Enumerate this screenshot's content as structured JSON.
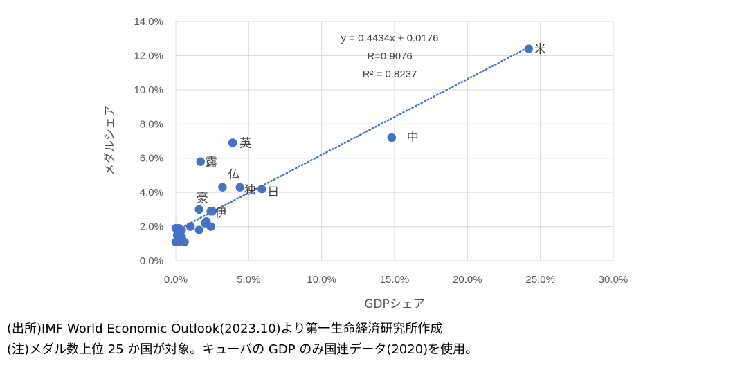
{
  "chart_data": {
    "type": "scatter",
    "xlabel": "GDPシェア",
    "ylabel": "メダルシェア",
    "xlim": [
      0,
      0.3
    ],
    "ylim": [
      0,
      0.14
    ],
    "x_ticks": [
      "0.0%",
      "5.0%",
      "10.0%",
      "15.0%",
      "20.0%",
      "25.0%",
      "30.0%"
    ],
    "y_ticks": [
      "0.0%",
      "2.0%",
      "4.0%",
      "6.0%",
      "8.0%",
      "10.0%",
      "12.0%",
      "14.0%"
    ],
    "grid": true,
    "point_color": "#4472C4",
    "trendline": {
      "slope": 0.4434,
      "intercept": 0.0176,
      "style": "dotted",
      "color": "#4472C4",
      "equation": "y = 0.4434x + 0.0176",
      "r": "R=0.9076",
      "r2": "R² = 0.8237"
    },
    "points": [
      {
        "x": 0.242,
        "y": 0.124,
        "label": "米"
      },
      {
        "x": 0.148,
        "y": 0.072,
        "label": "中"
      },
      {
        "x": 0.039,
        "y": 0.069,
        "label": "英"
      },
      {
        "x": 0.017,
        "y": 0.058,
        "label": "露"
      },
      {
        "x": 0.032,
        "y": 0.043,
        "label": "仏"
      },
      {
        "x": 0.044,
        "y": 0.043,
        "label": "独"
      },
      {
        "x": 0.059,
        "y": 0.042,
        "label": "日"
      },
      {
        "x": 0.016,
        "y": 0.03,
        "label": "豪"
      },
      {
        "x": 0.024,
        "y": 0.029,
        "label": "伊"
      },
      {
        "x": 0.025,
        "y": 0.029,
        "label": ""
      },
      {
        "x": 0.02,
        "y": 0.022,
        "label": ""
      },
      {
        "x": 0.021,
        "y": 0.023,
        "label": ""
      },
      {
        "x": 0.024,
        "y": 0.02,
        "label": ""
      },
      {
        "x": 0.01,
        "y": 0.02,
        "label": ""
      },
      {
        "x": 0.016,
        "y": 0.018,
        "label": ""
      },
      {
        "x": 0.0,
        "y": 0.019,
        "label": ""
      },
      {
        "x": 0.002,
        "y": 0.019,
        "label": ""
      },
      {
        "x": 0.004,
        "y": 0.018,
        "label": ""
      },
      {
        "x": 0.003,
        "y": 0.016,
        "label": ""
      },
      {
        "x": 0.001,
        "y": 0.015,
        "label": ""
      },
      {
        "x": 0.004,
        "y": 0.014,
        "label": ""
      },
      {
        "x": 0.001,
        "y": 0.012,
        "label": ""
      },
      {
        "x": 0.0,
        "y": 0.011,
        "label": ""
      },
      {
        "x": 0.006,
        "y": 0.011,
        "label": ""
      },
      {
        "x": 0.002,
        "y": 0.011,
        "label": ""
      }
    ]
  },
  "notes": [
    "(出所)IMF World Economic Outlook(2023.10)より第一生命経済研究所作成",
    "(注)メダル数上位 25 か国が対象。キューバの GDP のみ国連データ(2020)を使用。"
  ]
}
